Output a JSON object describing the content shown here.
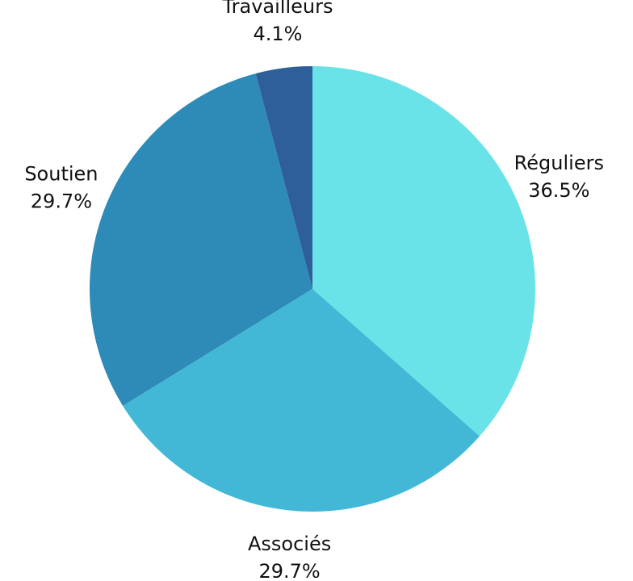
{
  "chart_data": {
    "type": "pie",
    "categories": [
      "Réguliers",
      "Associés",
      "Soutien",
      "Travailleurs"
    ],
    "values": [
      36.5,
      29.7,
      29.7,
      4.1
    ],
    "value_labels": [
      "36.5%",
      "29.7%",
      "29.7%",
      "4.1%"
    ],
    "colors": [
      "#6ae3e8",
      "#43b8d6",
      "#2e8bb8",
      "#2f5f99"
    ]
  }
}
